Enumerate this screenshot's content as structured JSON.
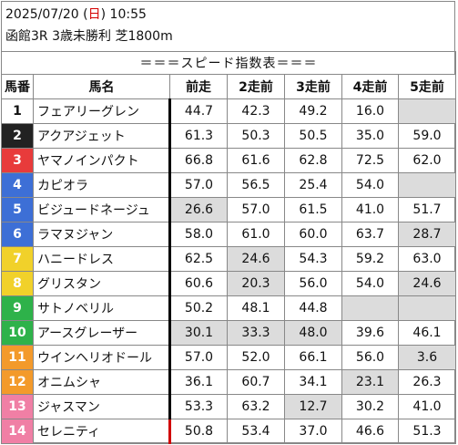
{
  "header": {
    "date": "2025/07/20",
    "day_open": " (",
    "day": "日",
    "day_close": ")",
    "time": " 10:55",
    "race_line": "函館3R 3歳未勝利 芝1800m"
  },
  "table_title": "＝＝＝スピード指数表＝＝＝",
  "columns": [
    "馬番",
    "馬名",
    "前走",
    "2走前",
    "3走前",
    "4走前",
    "5走前"
  ],
  "colors": {
    "frame_1": "#ffffff",
    "frame_2": "#222222",
    "frame_3": "#e83b3b",
    "frame_4": "#3d6fd6",
    "frame_5": "#f1d12a",
    "frame_6": "#2eb24a",
    "frame_7": "#f39a2b",
    "frame_8": "#f07fa5",
    "shade": "#dcdcdc",
    "red_marker": "#d00000"
  },
  "horses": [
    {
      "no": "1",
      "name": "フェアリーグレン",
      "vals": [
        "44.7",
        "42.3",
        "49.2",
        "16.0",
        ""
      ],
      "shade": [
        false,
        false,
        false,
        false,
        true
      ],
      "bg": "#ffffff",
      "fg": "#111111",
      "sep": "black"
    },
    {
      "no": "2",
      "name": "アクアジェット",
      "vals": [
        "61.3",
        "50.3",
        "50.5",
        "35.0",
        "59.0"
      ],
      "shade": [
        false,
        false,
        false,
        false,
        false
      ],
      "bg": "#222222",
      "fg": "#ffffff",
      "sep": "black"
    },
    {
      "no": "3",
      "name": "ヤマノインパクト",
      "vals": [
        "66.8",
        "61.6",
        "62.8",
        "72.5",
        "62.0"
      ],
      "shade": [
        false,
        false,
        false,
        false,
        false
      ],
      "bg": "#e83b3b",
      "fg": "#ffffff",
      "sep": "black"
    },
    {
      "no": "4",
      "name": "カピオラ",
      "vals": [
        "57.0",
        "56.5",
        "25.4",
        "54.0",
        ""
      ],
      "shade": [
        false,
        false,
        false,
        false,
        true
      ],
      "bg": "#3d6fd6",
      "fg": "#ffffff",
      "sep": "black"
    },
    {
      "no": "5",
      "name": "ビジュードネージュ",
      "vals": [
        "26.6",
        "57.0",
        "61.5",
        "41.0",
        "51.7"
      ],
      "shade": [
        true,
        false,
        false,
        false,
        false
      ],
      "bg": "#3d6fd6",
      "fg": "#ffffff",
      "sep": "black"
    },
    {
      "no": "6",
      "name": "ラマヌジャン",
      "vals": [
        "58.0",
        "61.0",
        "60.0",
        "63.7",
        "28.7"
      ],
      "shade": [
        false,
        false,
        false,
        false,
        true
      ],
      "bg": "#3d6fd6",
      "fg": "#ffffff",
      "sep": "black"
    },
    {
      "no": "7",
      "name": "ハニードレス",
      "vals": [
        "62.5",
        "24.6",
        "54.3",
        "59.2",
        "63.0"
      ],
      "shade": [
        false,
        true,
        false,
        false,
        false
      ],
      "bg": "#f1d12a",
      "fg": "#ffffff",
      "sep": "black"
    },
    {
      "no": "8",
      "name": "グリスタン",
      "vals": [
        "60.6",
        "20.3",
        "56.0",
        "54.0",
        "24.6"
      ],
      "shade": [
        false,
        true,
        false,
        false,
        true
      ],
      "bg": "#f1d12a",
      "fg": "#ffffff",
      "sep": "black"
    },
    {
      "no": "9",
      "name": "サトノベリル",
      "vals": [
        "50.2",
        "48.1",
        "44.8",
        "",
        ""
      ],
      "shade": [
        false,
        false,
        false,
        true,
        true
      ],
      "bg": "#2eb24a",
      "fg": "#ffffff",
      "sep": "black"
    },
    {
      "no": "10",
      "name": "アースグレーザー",
      "vals": [
        "30.1",
        "33.3",
        "48.0",
        "39.6",
        "46.1"
      ],
      "shade": [
        true,
        true,
        true,
        false,
        false
      ],
      "bg": "#2eb24a",
      "fg": "#ffffff",
      "sep": "black"
    },
    {
      "no": "11",
      "name": "ウインヘリオドール",
      "vals": [
        "57.0",
        "52.0",
        "66.1",
        "56.0",
        "3.6"
      ],
      "shade": [
        false,
        false,
        false,
        false,
        true
      ],
      "bg": "#f39a2b",
      "fg": "#ffffff",
      "sep": "black"
    },
    {
      "no": "12",
      "name": "オニムシャ",
      "vals": [
        "36.1",
        "60.7",
        "34.1",
        "23.1",
        "26.3"
      ],
      "shade": [
        false,
        false,
        false,
        true,
        false
      ],
      "bg": "#f39a2b",
      "fg": "#ffffff",
      "sep": "black"
    },
    {
      "no": "13",
      "name": "ジャスマン",
      "vals": [
        "53.3",
        "63.2",
        "12.7",
        "30.2",
        "41.0"
      ],
      "shade": [
        false,
        false,
        true,
        false,
        false
      ],
      "bg": "#f07fa5",
      "fg": "#ffffff",
      "sep": "black"
    },
    {
      "no": "14",
      "name": "セレニティ",
      "vals": [
        "50.8",
        "53.4",
        "37.0",
        "46.6",
        "51.3"
      ],
      "shade": [
        false,
        false,
        false,
        false,
        false
      ],
      "bg": "#f07fa5",
      "fg": "#ffffff",
      "sep": "red"
    }
  ]
}
